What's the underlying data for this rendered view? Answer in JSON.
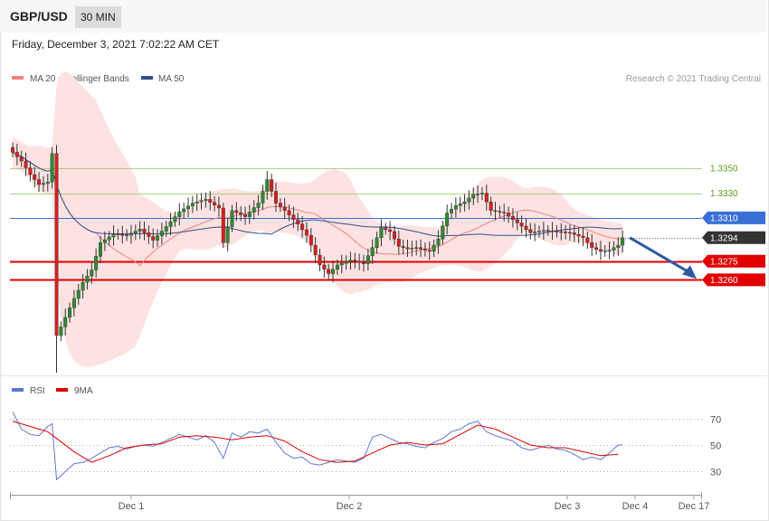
{
  "header": {
    "symbol": "GBP/USD",
    "timeframe": "30 MIN",
    "datetime": "Friday, December 3, 2021 7:02:22 AM CET"
  },
  "legend": {
    "ma20": {
      "label": "MA 20 + Bollinger Bands",
      "color": "#f08080"
    },
    "ma50": {
      "label": "MA 50",
      "color": "#2f4f8f"
    },
    "rsi": {
      "label": "RSI",
      "color": "#5b78d6"
    },
    "ma9": {
      "label": "9MA",
      "color": "#dd0000"
    }
  },
  "copyright": "Research © 2021 Trading Central",
  "colors": {
    "bull": "#2f8a2f",
    "bear": "#d42020",
    "band": "#fde2e2",
    "resistance": "#8bbf55",
    "pivot": "#3a6fd8",
    "support": "#e00000",
    "last": "#333333",
    "arrow": "#2f5aa0"
  },
  "chart_data": [
    {
      "type": "candlestick",
      "title": "GBP/USD 30 MIN",
      "x_ticks": [
        "Dec 1",
        "Dec 2",
        "Dec 3",
        "Dec 4",
        "Dec 17"
      ],
      "ylim": [
        1.3185,
        1.3413
      ],
      "levels": [
        {
          "value": 1.335,
          "label": "1.3350",
          "kind": "resistance"
        },
        {
          "value": 1.333,
          "label": "1.3330",
          "kind": "resistance"
        },
        {
          "value": 1.331,
          "label": "1.3310",
          "kind": "pivot"
        },
        {
          "value": 1.3294,
          "label": "1.3294",
          "kind": "last"
        },
        {
          "value": 1.3275,
          "label": "1.3275",
          "kind": "support"
        },
        {
          "value": 1.326,
          "label": "1.3260",
          "kind": "support"
        }
      ],
      "forecast": {
        "from": 1.3294,
        "to": 1.326,
        "direction": "down"
      },
      "close_path": [
        [
          0,
          1.3363
        ],
        [
          2,
          1.3356
        ],
        [
          4,
          1.3345
        ],
        [
          6,
          1.3337
        ],
        [
          8,
          1.3339
        ],
        [
          9,
          1.3362
        ],
        [
          10,
          1.3215
        ],
        [
          11,
          1.3222
        ],
        [
          14,
          1.3245
        ],
        [
          16,
          1.3258
        ],
        [
          18,
          1.3268
        ],
        [
          20,
          1.329
        ],
        [
          23,
          1.3297
        ],
        [
          26,
          1.3296
        ],
        [
          29,
          1.3301
        ],
        [
          32,
          1.3292
        ],
        [
          35,
          1.3303
        ],
        [
          38,
          1.3315
        ],
        [
          41,
          1.3322
        ],
        [
          44,
          1.3325
        ],
        [
          47,
          1.3318
        ],
        [
          48,
          1.329
        ],
        [
          50,
          1.3316
        ],
        [
          53,
          1.3311
        ],
        [
          56,
          1.3322
        ],
        [
          58,
          1.3341
        ],
        [
          60,
          1.3322
        ],
        [
          62,
          1.3316
        ],
        [
          65,
          1.3305
        ],
        [
          67,
          1.3296
        ],
        [
          70,
          1.3272
        ],
        [
          72,
          1.3265
        ],
        [
          74,
          1.3272
        ],
        [
          77,
          1.3276
        ],
        [
          80,
          1.3273
        ],
        [
          82,
          1.3286
        ],
        [
          84,
          1.3302
        ],
        [
          86,
          1.3299
        ],
        [
          88,
          1.3287
        ],
        [
          90,
          1.3285
        ],
        [
          92,
          1.3286
        ],
        [
          95,
          1.3283
        ],
        [
          97,
          1.3293
        ],
        [
          99,
          1.3314
        ],
        [
          101,
          1.332
        ],
        [
          103,
          1.3323
        ],
        [
          105,
          1.3329
        ],
        [
          107,
          1.333
        ],
        [
          109,
          1.3316
        ],
        [
          112,
          1.3314
        ],
        [
          115,
          1.3306
        ],
        [
          118,
          1.3298
        ],
        [
          121,
          1.33
        ],
        [
          124,
          1.3299
        ],
        [
          127,
          1.3298
        ],
        [
          130,
          1.3294
        ],
        [
          132,
          1.3286
        ],
        [
          134,
          1.3283
        ],
        [
          136,
          1.3284
        ],
        [
          138,
          1.3288
        ],
        [
          139,
          1.3294
        ]
      ]
    },
    {
      "type": "line",
      "title": "RSI",
      "yticks": [
        70,
        50,
        30
      ],
      "ylim": [
        16,
        82
      ],
      "series": [
        {
          "name": "RSI",
          "key": "rsi",
          "points": [
            [
              0,
              75
            ],
            [
              2,
              62
            ],
            [
              4,
              58
            ],
            [
              6,
              57
            ],
            [
              8,
              64
            ],
            [
              9,
              66
            ],
            [
              10,
              24
            ],
            [
              12,
              30
            ],
            [
              14,
              36
            ],
            [
              16,
              37
            ],
            [
              18,
              40
            ],
            [
              20,
              44
            ],
            [
              22,
              48
            ],
            [
              24,
              49
            ],
            [
              26,
              47
            ],
            [
              28,
              49
            ],
            [
              30,
              50
            ],
            [
              32,
              49
            ],
            [
              34,
              52
            ],
            [
              36,
              55
            ],
            [
              38,
              58
            ],
            [
              40,
              56
            ],
            [
              42,
              54
            ],
            [
              44,
              57
            ],
            [
              46,
              52
            ],
            [
              48,
              40
            ],
            [
              50,
              59
            ],
            [
              52,
              56
            ],
            [
              54,
              60
            ],
            [
              56,
              59
            ],
            [
              58,
              62
            ],
            [
              60,
              52
            ],
            [
              62,
              44
            ],
            [
              64,
              40
            ],
            [
              66,
              41
            ],
            [
              68,
              36
            ],
            [
              70,
              35
            ],
            [
              72,
              37
            ],
            [
              74,
              39
            ],
            [
              76,
              38
            ],
            [
              78,
              37
            ],
            [
              80,
              40
            ],
            [
              82,
              56
            ],
            [
              84,
              58
            ],
            [
              86,
              55
            ],
            [
              88,
              52
            ],
            [
              90,
              51
            ],
            [
              92,
              49
            ],
            [
              94,
              48
            ],
            [
              96,
              52
            ],
            [
              98,
              55
            ],
            [
              100,
              60
            ],
            [
              102,
              62
            ],
            [
              104,
              66
            ],
            [
              106,
              68
            ],
            [
              108,
              60
            ],
            [
              110,
              57
            ],
            [
              112,
              55
            ],
            [
              114,
              53
            ],
            [
              116,
              48
            ],
            [
              118,
              46
            ],
            [
              120,
              48
            ],
            [
              122,
              50
            ],
            [
              124,
              47
            ],
            [
              126,
              46
            ],
            [
              128,
              43
            ],
            [
              130,
              39
            ],
            [
              132,
              41
            ],
            [
              134,
              39
            ],
            [
              136,
              44
            ],
            [
              138,
              50
            ],
            [
              139,
              50
            ]
          ]
        },
        {
          "name": "9MA",
          "key": "ma9",
          "points": [
            [
              0,
              68
            ],
            [
              4,
              64
            ],
            [
              8,
              60
            ],
            [
              10,
              55
            ],
            [
              14,
              45
            ],
            [
              18,
              37
            ],
            [
              22,
              42
            ],
            [
              26,
              48
            ],
            [
              30,
              50
            ],
            [
              34,
              51
            ],
            [
              38,
              56
            ],
            [
              42,
              57
            ],
            [
              46,
              56
            ],
            [
              50,
              54
            ],
            [
              54,
              56
            ],
            [
              58,
              57
            ],
            [
              62,
              53
            ],
            [
              66,
              45
            ],
            [
              70,
              39
            ],
            [
              74,
              37
            ],
            [
              78,
              38
            ],
            [
              82,
              44
            ],
            [
              86,
              50
            ],
            [
              90,
              52
            ],
            [
              94,
              50
            ],
            [
              98,
              51
            ],
            [
              102,
              58
            ],
            [
              106,
              65
            ],
            [
              110,
              62
            ],
            [
              114,
              56
            ],
            [
              118,
              50
            ],
            [
              122,
              48
            ],
            [
              126,
              48
            ],
            [
              130,
              45
            ],
            [
              134,
              42
            ],
            [
              138,
              43
            ]
          ]
        }
      ]
    }
  ]
}
